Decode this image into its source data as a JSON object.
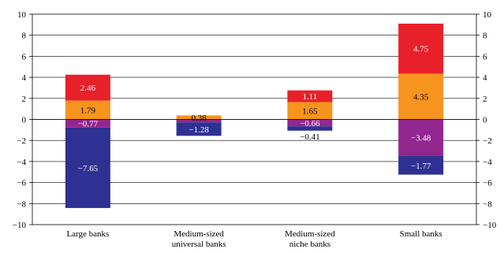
{
  "chart_data": {
    "type": "bar",
    "stacked": true,
    "title": "",
    "xlabel": "",
    "ylabel": "",
    "ylim": [
      -10,
      10
    ],
    "yticks": [
      -10,
      -8,
      -6,
      -4,
      -2,
      0,
      2,
      4,
      6,
      8,
      10
    ],
    "ytick_labels": [
      "−10",
      "−8",
      "−6",
      "−4",
      "−2",
      "0",
      "2",
      "4",
      "6",
      "8",
      "10"
    ],
    "grid": true,
    "legend": "none",
    "right_axis_mirrored": true,
    "categories": [
      [
        "Large banks"
      ],
      [
        "Medium-sized",
        "universal banks"
      ],
      [
        "Medium-sized",
        "niche banks"
      ],
      [
        "Small banks"
      ]
    ],
    "series": [
      {
        "color": "#e8202a",
        "text_color": "#ffffff",
        "values": [
          2.46,
          null,
          1.11,
          4.75
        ],
        "labels": [
          "2.46",
          "",
          "1.11",
          "4.75"
        ]
      },
      {
        "color": "#f7941d",
        "text_color": "#000000",
        "values": [
          1.79,
          0.38,
          1.65,
          4.35
        ],
        "labels": [
          "1.79",
          "0.38",
          "1.65",
          "4.35"
        ]
      },
      {
        "color": "#92278f",
        "text_color": "#ffffff",
        "values": [
          -0.77,
          -0.28,
          -0.66,
          -3.48
        ],
        "labels": [
          "−0.77",
          "",
          "−0.66",
          "−3.48"
        ]
      },
      {
        "color": "#2e3192",
        "text_color": "#ffffff",
        "values": [
          -7.65,
          -1.28,
          -0.41,
          -1.77
        ],
        "labels": [
          "−7.65",
          "−1.28",
          "−0.41",
          "−1.77"
        ]
      }
    ]
  }
}
